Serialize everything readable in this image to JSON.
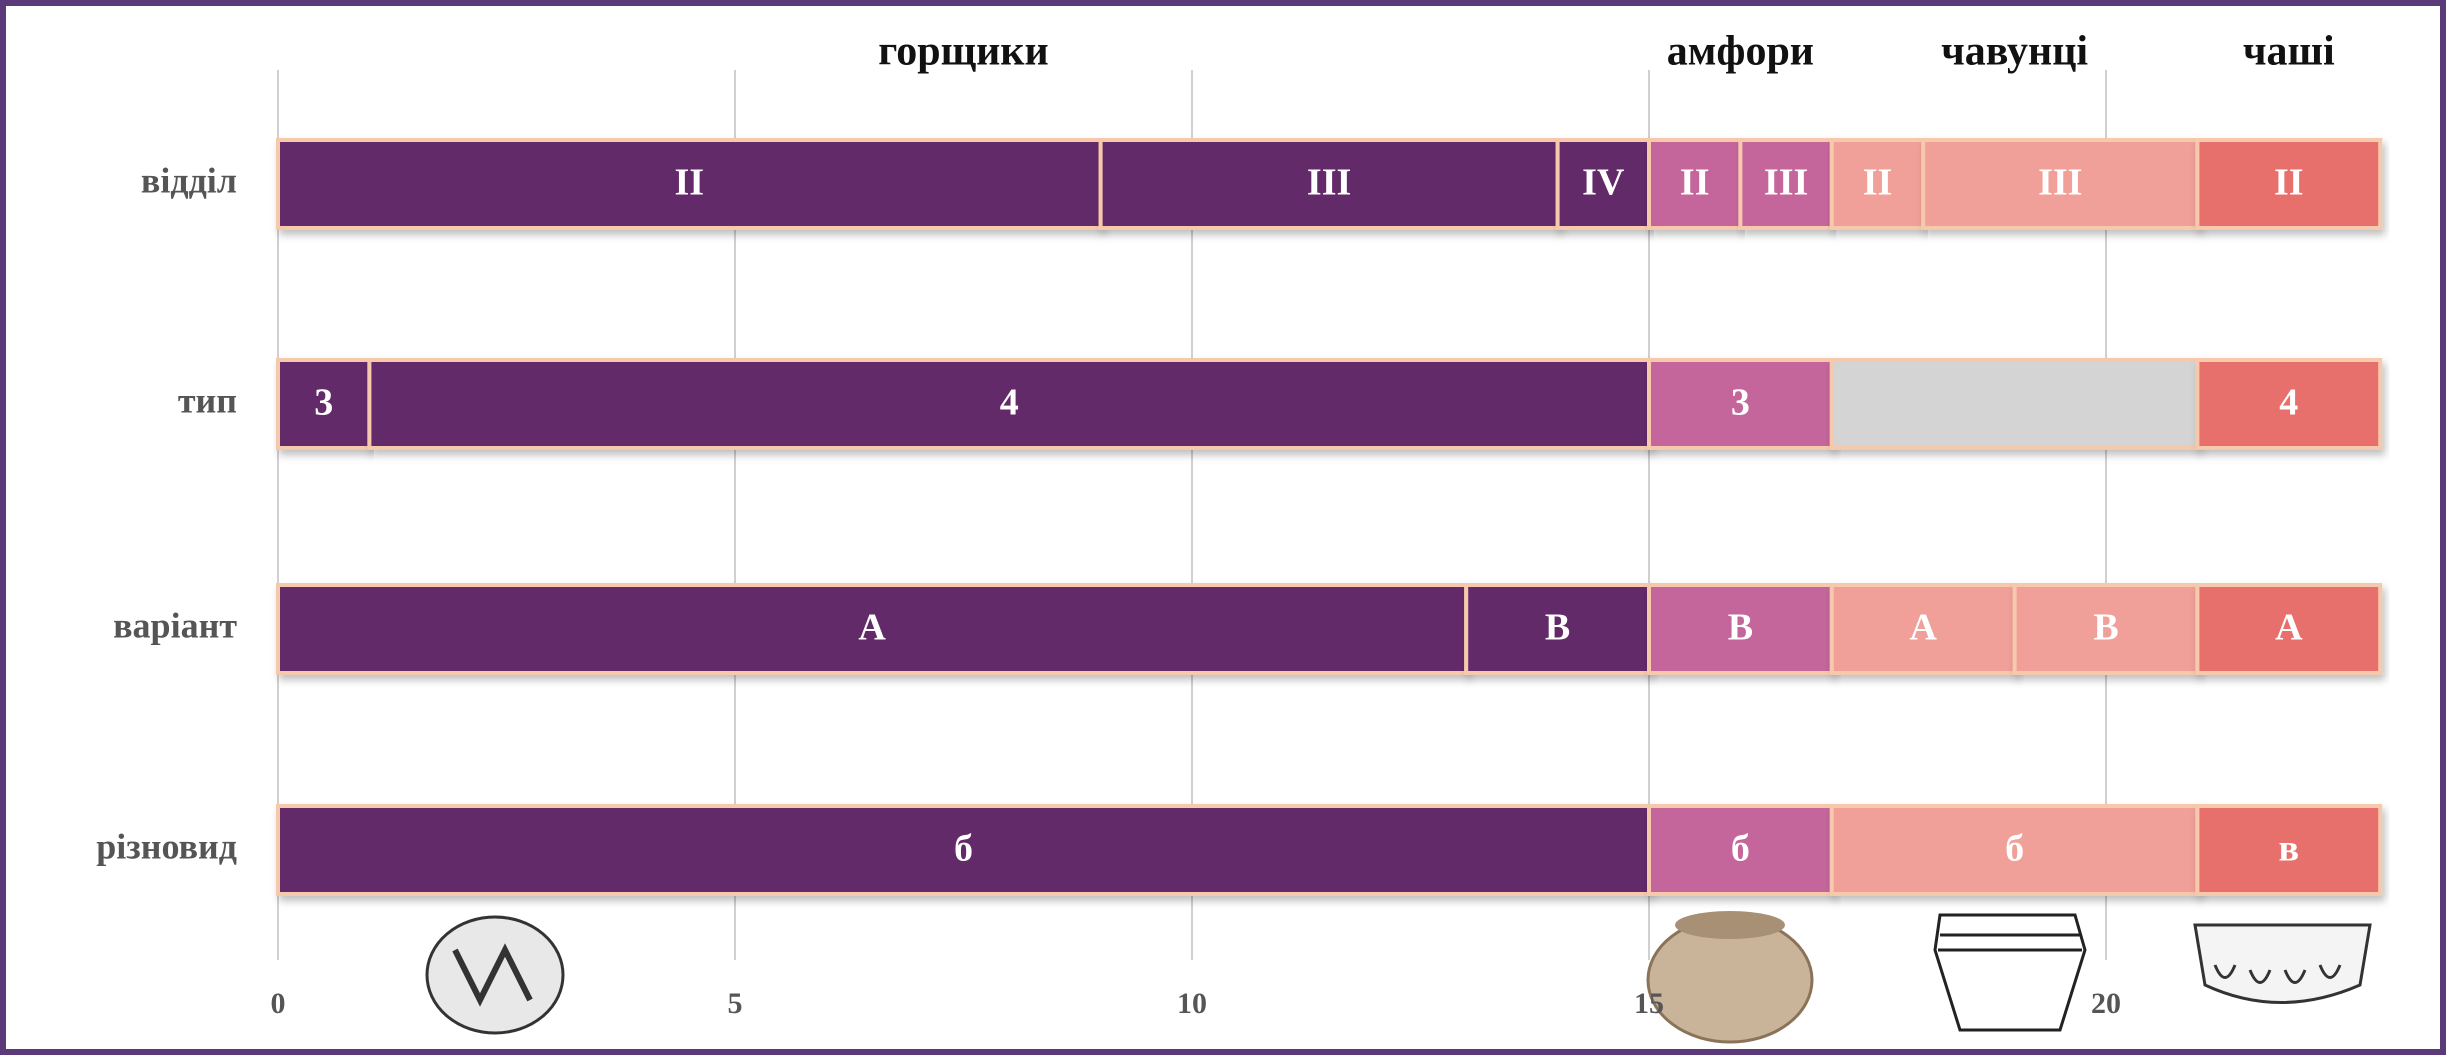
{
  "chart_data": {
    "type": "stacked-bar",
    "categories": [
      "відділ",
      "тип",
      "варіант",
      "різновид"
    ],
    "xlim": [
      0,
      23
    ],
    "xticks": [
      0,
      5,
      10,
      15,
      20
    ],
    "grid": true,
    "groups": [
      {
        "name": "горщики",
        "color": "#642a6b",
        "rows": [
          [
            {
              "value": 9,
              "label": "II"
            },
            {
              "value": 5,
              "label": "III"
            },
            {
              "value": 1,
              "label": "IV"
            }
          ],
          [
            {
              "value": 1,
              "label": "3"
            },
            {
              "value": 14,
              "label": "4"
            }
          ],
          [
            {
              "value": 13,
              "label": "А"
            },
            {
              "value": 2,
              "label": "В"
            }
          ],
          [
            {
              "value": 15,
              "label": "б"
            }
          ]
        ]
      },
      {
        "name": "амфори",
        "color": "#c4669b",
        "rows": [
          [
            {
              "value": 1,
              "label": "II"
            },
            {
              "value": 1,
              "label": "III"
            }
          ],
          [
            {
              "value": 2,
              "label": "3"
            }
          ],
          [
            {
              "value": 2,
              "label": "В"
            }
          ],
          [
            {
              "value": 2,
              "label": "б"
            }
          ]
        ]
      },
      {
        "name": "чавунці",
        "color": "#f0a099",
        "rows": [
          [
            {
              "value": 1,
              "label": "II"
            },
            {
              "value": 3,
              "label": "III"
            }
          ],
          [
            {
              "value": 4,
              "label": null,
              "color": "#d4d4d4"
            }
          ],
          [
            {
              "value": 2,
              "label": "А"
            },
            {
              "value": 2,
              "label": "В"
            }
          ],
          [
            {
              "value": 4,
              "label": "б"
            }
          ]
        ]
      },
      {
        "name": "чаші",
        "color": "#e8706c",
        "rows": [
          [
            {
              "value": 2,
              "label": "II"
            }
          ],
          [
            {
              "value": 2,
              "label": "4"
            }
          ],
          [
            {
              "value": 2,
              "label": "А"
            }
          ],
          [
            {
              "value": 2,
              "label": "в"
            }
          ]
        ]
      }
    ]
  }
}
